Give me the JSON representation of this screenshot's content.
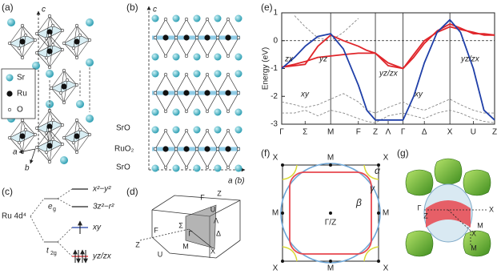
{
  "panel_labels": [
    "(a)",
    "(b)",
    "(c)",
    "(d)",
    "(e)",
    "(f)",
    "(g)"
  ],
  "panel_a": {
    "axes": [
      "c",
      "a",
      "b"
    ],
    "legend": [
      "Sr",
      "Ru",
      "O"
    ]
  },
  "panel_b": {
    "axis_c": "c",
    "axis_ab": "a (b)",
    "layers": [
      "SrO",
      "RuO₂",
      "SrO"
    ]
  },
  "panel_c": {
    "ion": "Ru 4d⁴",
    "eg": "e",
    "eg_sub": "g",
    "t2g": "t",
    "t2g_sub": "2g",
    "levels": [
      "x²−y²",
      "3z²−r²",
      "xy",
      "yz/zx"
    ]
  },
  "panel_d": {
    "points": [
      "Z",
      "F",
      "U",
      "Σ",
      "Γ",
      "M",
      "X",
      "Δ",
      "Λ",
      "U",
      "F",
      "Z"
    ]
  },
  "chart_data": {
    "type": "line",
    "y_label": "Energy (eV)",
    "xlim": [
      0,
      10
    ],
    "xticks": [
      {
        "value": 0,
        "label": "Γ"
      },
      {
        "value": 1.1,
        "label": "Σ"
      },
      {
        "value": 2.3,
        "label": "M"
      },
      {
        "value": 3.6,
        "label": "F"
      },
      {
        "value": 4.4,
        "label": "Z"
      },
      {
        "value": 5.0,
        "label": "Λ"
      },
      {
        "value": 5.7,
        "label": "Γ"
      },
      {
        "value": 6.7,
        "label": "Δ"
      },
      {
        "value": 7.9,
        "label": "X"
      },
      {
        "value": 9.0,
        "label": "U"
      },
      {
        "value": 10,
        "label": "Z"
      }
    ],
    "ylim": [
      -3,
      1
    ],
    "yticks": [
      -3,
      -2,
      -1,
      0,
      1
    ],
    "x": [
      0,
      0.6,
      1.1,
      1.7,
      2.3,
      2.9,
      3.6,
      4.0,
      4.4,
      5.0,
      5.7,
      6.2,
      6.7,
      7.3,
      7.9,
      8.4,
      9.0,
      9.5,
      10
    ],
    "series": [
      {
        "color": "#888",
        "dashed": true,
        "values": [
          -2.2,
          -2.3,
          -2.4,
          -2.3,
          -2.1,
          -1.9,
          -2.2,
          -2.5,
          -2.6,
          -2.4,
          -2.2,
          -2.4,
          -2.5,
          -2.3,
          -2.1,
          -2.3,
          -2.5,
          -2.6,
          -2.6
        ]
      },
      {
        "color": "#888",
        "dashed": true,
        "values": [
          -2.6,
          -2.6,
          -2.5,
          -2.7,
          -2.5,
          -2.6,
          -2.8,
          -2.9,
          -2.95,
          -2.7,
          -2.6,
          -2.7,
          -2.8,
          -2.6,
          -2.5,
          -2.6,
          -2.8,
          -2.9,
          -2.95
        ]
      },
      {
        "color": "#888",
        "dashed": true,
        "values": [
          null,
          0.9,
          0.5,
          0.1,
          0.0,
          0.3,
          0.8,
          null,
          null,
          null,
          null,
          null,
          null,
          null,
          null,
          null,
          null,
          null,
          null
        ]
      },
      {
        "color": "#e0262b",
        "dashed": false,
        "values": [
          -0.95,
          -0.9,
          -0.85,
          -0.2,
          0.2,
          0.0,
          -0.2,
          -0.35,
          -0.45,
          -0.9,
          -1.0,
          -0.6,
          -0.1,
          0.35,
          0.6,
          0.45,
          0.25,
          0.25,
          0.2
        ]
      },
      {
        "color": "#e0262b",
        "dashed": false,
        "values": [
          -0.95,
          -0.85,
          -0.75,
          -0.6,
          -0.55,
          -0.5,
          -0.45,
          -0.45,
          -0.45,
          -0.8,
          -1.0,
          -0.5,
          0.0,
          0.3,
          0.5,
          0.4,
          0.3,
          0.2,
          0.2
        ]
      },
      {
        "color": "#1f3fa8",
        "dashed": false,
        "values": [
          -1.0,
          -0.6,
          -0.2,
          0.15,
          0.25,
          -0.3,
          -1.6,
          -2.5,
          -2.85,
          -2.85,
          -2.85,
          -2.0,
          -0.8,
          0.3,
          0.75,
          0.3,
          -1.0,
          -2.5,
          -2.85
        ]
      }
    ],
    "annotations": [
      {
        "text": "zx",
        "color": "#e0262b"
      },
      {
        "text": "yz",
        "color": "#e0262b"
      },
      {
        "text": "yz/zx",
        "color": "#e0262b"
      },
      {
        "text": "xy",
        "color": "#1f3fa8"
      },
      {
        "text": "yz/zx",
        "color": "#e0262b"
      },
      {
        "text": "xy",
        "color": "#1f3fa8"
      }
    ]
  },
  "panel_f": {
    "points": [
      "X",
      "M",
      "X",
      "M",
      "Γ/Z",
      "M",
      "X",
      "M",
      "X"
    ],
    "sheets": [
      {
        "text": "α",
        "color": "#c8c81e"
      },
      {
        "text": "β",
        "color": "#e8474f"
      },
      {
        "text": "γ",
        "color": "#2f6fae"
      }
    ]
  },
  "panel_g": {
    "points": [
      "Γ",
      "Z",
      "X",
      "M",
      "X",
      "M"
    ]
  }
}
